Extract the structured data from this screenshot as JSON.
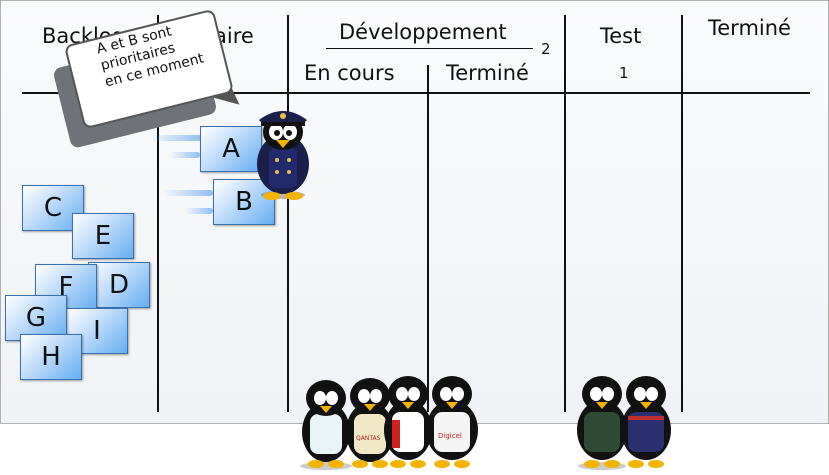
{
  "columns": {
    "backlog": "Backlog",
    "backlog_right_fragment": "aire",
    "development": "Développement",
    "development_limit": "2",
    "dev_in_progress": "En cours",
    "dev_done": "Terminé",
    "test": "Test",
    "test_limit": "1",
    "done": "Terminé"
  },
  "speech_bubble": [
    "A et B sont",
    "prioritaires",
    "en ce moment"
  ],
  "cards": {
    "a": "A",
    "b": "B",
    "c": "C",
    "d": "D",
    "e": "E",
    "f": "F",
    "g": "G",
    "h": "H",
    "i": "I"
  },
  "jersey_labels": {
    "qantas": "QANTAS",
    "digicel": "Digicel"
  }
}
